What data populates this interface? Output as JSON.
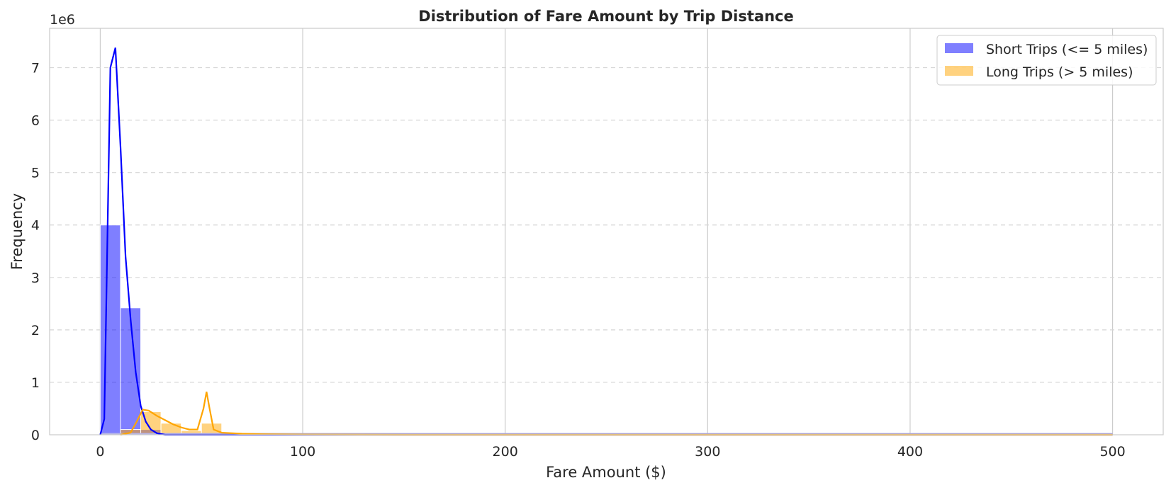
{
  "chart_data": {
    "type": "bar",
    "title": "Distribution of Fare Amount by Trip Distance",
    "xlabel": "Fare Amount ($)",
    "ylabel": "Frequency",
    "y_multiplier_label": "1e6",
    "xlim": [
      -25,
      525
    ],
    "ylim": [
      0,
      7.75
    ],
    "x_ticks": [
      0,
      100,
      200,
      300,
      400,
      500
    ],
    "y_ticks": [
      0,
      1,
      2,
      3,
      4,
      5,
      6,
      7
    ],
    "y_grid": "dashed",
    "x_grid": "solid",
    "legend_position": "top-right",
    "series": [
      {
        "name": "Short Trips (<= 5 miles)",
        "color": "#0000ff",
        "bins": [
          {
            "x0": 0,
            "x1": 10,
            "value": 4.0
          },
          {
            "x0": 10,
            "x1": 20,
            "value": 2.42
          },
          {
            "x0": 20,
            "x1": 30,
            "value": 0.1
          },
          {
            "x0": 30,
            "x1": 40,
            "value": 0.02
          },
          {
            "x0": 40,
            "x1": 50,
            "value": 0.01
          }
        ],
        "kde": [
          [
            0,
            0.0
          ],
          [
            2,
            0.3
          ],
          [
            5,
            7.0
          ],
          [
            7.5,
            7.38
          ],
          [
            10,
            5.5
          ],
          [
            12.5,
            3.4
          ],
          [
            15,
            2.2
          ],
          [
            17.5,
            1.2
          ],
          [
            20,
            0.55
          ],
          [
            22.5,
            0.25
          ],
          [
            25,
            0.1
          ],
          [
            28,
            0.03
          ],
          [
            32,
            0.0
          ],
          [
            40,
            0.0
          ],
          [
            500,
            0.0
          ]
        ]
      },
      {
        "name": "Long Trips (> 5 miles)",
        "color": "#ffa500",
        "bins": [
          {
            "x0": 10,
            "x1": 20,
            "value": 0.1
          },
          {
            "x0": 20,
            "x1": 30,
            "value": 0.44
          },
          {
            "x0": 30,
            "x1": 40,
            "value": 0.22
          },
          {
            "x0": 40,
            "x1": 50,
            "value": 0.08
          },
          {
            "x0": 50,
            "x1": 60,
            "value": 0.22
          },
          {
            "x0": 60,
            "x1": 70,
            "value": 0.03
          },
          {
            "x0": 70,
            "x1": 80,
            "value": 0.015
          }
        ],
        "kde": [
          [
            10,
            0.0
          ],
          [
            15,
            0.04
          ],
          [
            18,
            0.25
          ],
          [
            21,
            0.48
          ],
          [
            24,
            0.46
          ],
          [
            28,
            0.36
          ],
          [
            32,
            0.28
          ],
          [
            36,
            0.2
          ],
          [
            40,
            0.14
          ],
          [
            44,
            0.1
          ],
          [
            48,
            0.1
          ],
          [
            51,
            0.5
          ],
          [
            52.5,
            0.82
          ],
          [
            54,
            0.5
          ],
          [
            56,
            0.1
          ],
          [
            60,
            0.04
          ],
          [
            70,
            0.02
          ],
          [
            80,
            0.01
          ],
          [
            100,
            0.004
          ],
          [
            150,
            0.0
          ],
          [
            500,
            0.0
          ]
        ]
      }
    ]
  }
}
